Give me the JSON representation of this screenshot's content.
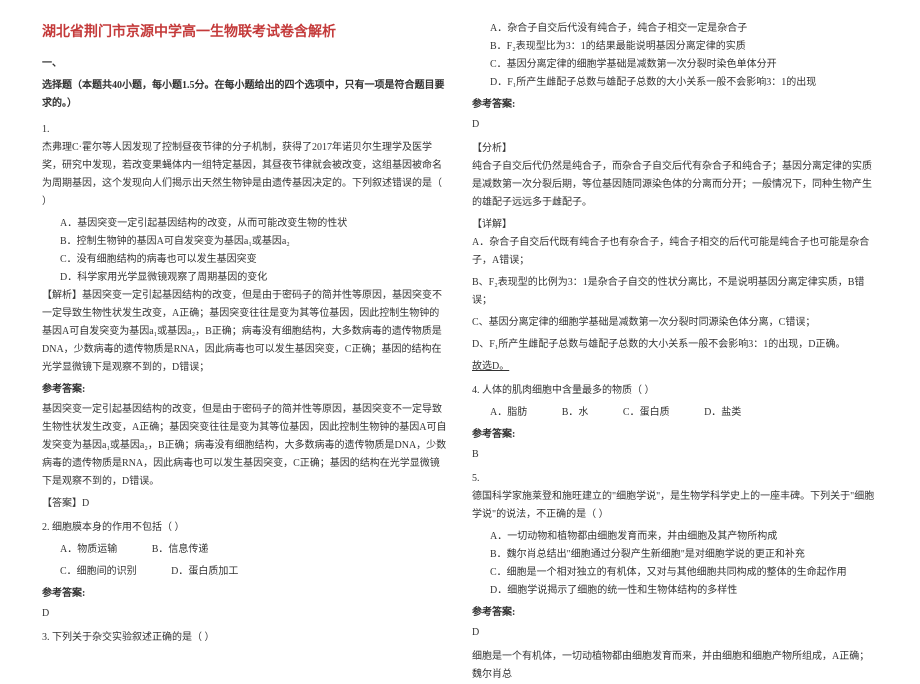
{
  "title": "湖北省荆门市京源中学高一生物联考试卷含解析",
  "section1_head": "一、",
  "instruction": "选择题（本题共40小题，每小题1.5分。在每小题给出的四个选项中，只有一项是符合题目要求的。）",
  "q1": {
    "num": "1.",
    "text": "杰弗理C·霍尔等人因发现了控制昼夜节律的分子机制，获得了2017年诺贝尔生理学及医学奖，研究中发现，若改变果蝇体内一组特定基因，其昼夜节律就会被改变，这组基因被命名为周期基因，这个发现向人们揭示出天然生物钟是由遗传基因决定的。下列叙述错误的是（   ）",
    "opts": {
      "a": "A．基因突变一定引起基因结构的改变，从而可能改变生物的性状",
      "b": "B．控制生物钟的基因A可自发突变为基因a₁或基因a₂",
      "c": "C．没有细胞结构的病毒也可以发生基因突变",
      "d": "D．科学家用光学显微镜观察了周期基因的变化"
    },
    "analysis_label": "【解析】",
    "analysis": "基因突变一定引起基因结构的改变，但是由于密码子的简并性等原因，基因突变不一定导致生物性状发生改变，A正确；基因突变往往是变为其等位基因，因此控制生物钟的基因A可自发突变为基因a₁或基因a₂，B正确；病毒没有细胞结构，大多数病毒的遗传物质是DNA，少数病毒的遗传物质是RNA，因此病毒也可以发生基因突变，C正确；基因的结构在光学显微镜下是观察不到的，D错误；",
    "ans_label": "参考答案:",
    "ans_text": "基因突变一定引起基因结构的改变，但是由于密码子的简并性等原因，基因突变不一定导致生物性状发生改变，A正确；基因突变往往是变为其等位基因，因此控制生物钟的基因A可自发突变为基因a₁或基因a₂，B正确；病毒没有细胞结构，大多数病毒的遗传物质是DNA，少数病毒的遗传物质是RNA，因此病毒也可以发生基因突变，C正确；基因的结构在光学显微镜下是观察不到的，D错误。",
    "ans_tag": "【答案】D"
  },
  "q2": {
    "num": "2.",
    "text": "细胞膜本身的作用不包括（   ）",
    "opts": {
      "a": "A．物质运输",
      "b": "B．信息传递",
      "c": "C．细胞间的识别",
      "d": "D．蛋白质加工"
    },
    "ans_label": "参考答案:",
    "ans_val": "D"
  },
  "q3": {
    "num": "3.",
    "text": "下列关于杂交实验叙述正确的是（   ）",
    "opts": {
      "a": "A．杂合子自交后代没有纯合子，纯合子相交一定是杂合子",
      "b": "B．F₂表现型比为3：1的结果最能说明基因分离定律的实质",
      "c": "C．基因分离定律的细胞学基础是减数第一次分裂时染色单体分开",
      "d": "D．F₁所产生雌配子总数与雄配子总数的大小关系一般不会影响3：1的出现"
    },
    "ans_label": "参考答案:",
    "ans_val": "D",
    "analysis_label": "【分析】",
    "analysis": "纯合子自交后代仍然是纯合子，而杂合子自交后代有杂合子和纯合子；基因分离定律的实质是减数第一次分裂后期，等位基因随同源染色体的分离而分开；一般情况下，同种生物产生的雄配子远远多于雌配子。",
    "detail_label": "【详解】",
    "detail_a": "A．杂合子自交后代既有纯合子也有杂合子，纯合子相交的后代可能是纯合子也可能是杂合子，A错误；",
    "detail_b": "B、F₂表现型的比例为3：1是杂合子自交的性状分离比，不是说明基因分离定律实质，B错误；",
    "detail_c": "C、基因分离定律的细胞学基础是减数第一次分裂时同源染色体分离，C错误；",
    "detail_d": "D、F₁所产生雌配子总数与雄配子总数的大小关系一般不会影响3：1的出现，D正确。",
    "pick": "故选D。"
  },
  "q4": {
    "num": "4.",
    "text": "人体的肌肉细胞中含量最多的物质（   ）",
    "opts": {
      "a": "A．脂肪",
      "b": "B．水",
      "c": "C．蛋白质",
      "d": "D．盐类"
    },
    "ans_label": "参考答案:",
    "ans_val": "B"
  },
  "q5": {
    "num": "5.",
    "text": "德国科学家施莱登和施旺建立的\"细胞学说\"，是生物学科学史上的一座丰碑。下列关于\"细胞学说\"的说法，不正确的是（   ）",
    "opts": {
      "a": "A．一切动物和植物都由细胞发育而来，并由细胞及其产物所构成",
      "b": "B．魏尔肖总结出\"细胞通过分裂产生新细胞\"是对细胞学说的更正和补充",
      "c": "C．细胞是一个相对独立的有机体，又对与其他细胞共同构成的整体的生命起作用",
      "d": "D．细胞学说揭示了细胞的统一性和生物体结构的多样性"
    },
    "ans_label": "参考答案:",
    "ans_val": "D",
    "analysis": "细胞是一个有机体，一切动植物都由细胞发育而来，并由细胞和细胞产物所组成，A正确；魏尔肖总"
  }
}
